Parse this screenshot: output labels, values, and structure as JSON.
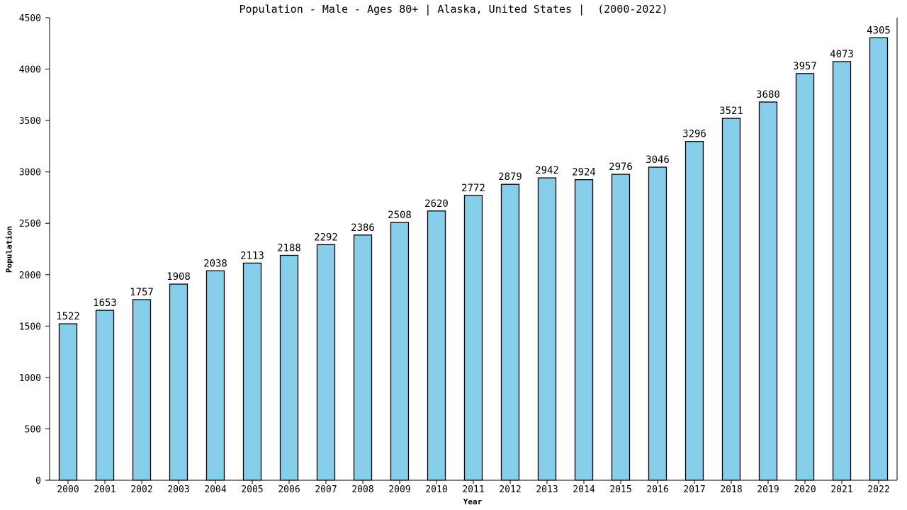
{
  "chart_data": {
    "type": "bar",
    "title": "Population - Male - Ages 80+ | Alaska, United States |  (2000-2022)",
    "xlabel": "Year",
    "ylabel": "Population",
    "categories": [
      "2000",
      "2001",
      "2002",
      "2003",
      "2004",
      "2005",
      "2006",
      "2007",
      "2008",
      "2009",
      "2010",
      "2011",
      "2012",
      "2013",
      "2014",
      "2015",
      "2016",
      "2017",
      "2018",
      "2019",
      "2020",
      "2021",
      "2022"
    ],
    "values": [
      1522,
      1653,
      1757,
      1908,
      2038,
      2113,
      2188,
      2292,
      2386,
      2508,
      2620,
      2772,
      2879,
      2942,
      2924,
      2976,
      3046,
      3296,
      3521,
      3680,
      3957,
      4073,
      4305
    ],
    "ylim": [
      0,
      4500
    ],
    "yticks": [
      0,
      500,
      1000,
      1500,
      2000,
      2500,
      3000,
      3500,
      4000,
      4500
    ],
    "grid": false,
    "data_labels": true,
    "colors": {
      "bar_fill": "#87ceeb",
      "bar_stroke": "#000000",
      "axis": "#000000"
    }
  }
}
